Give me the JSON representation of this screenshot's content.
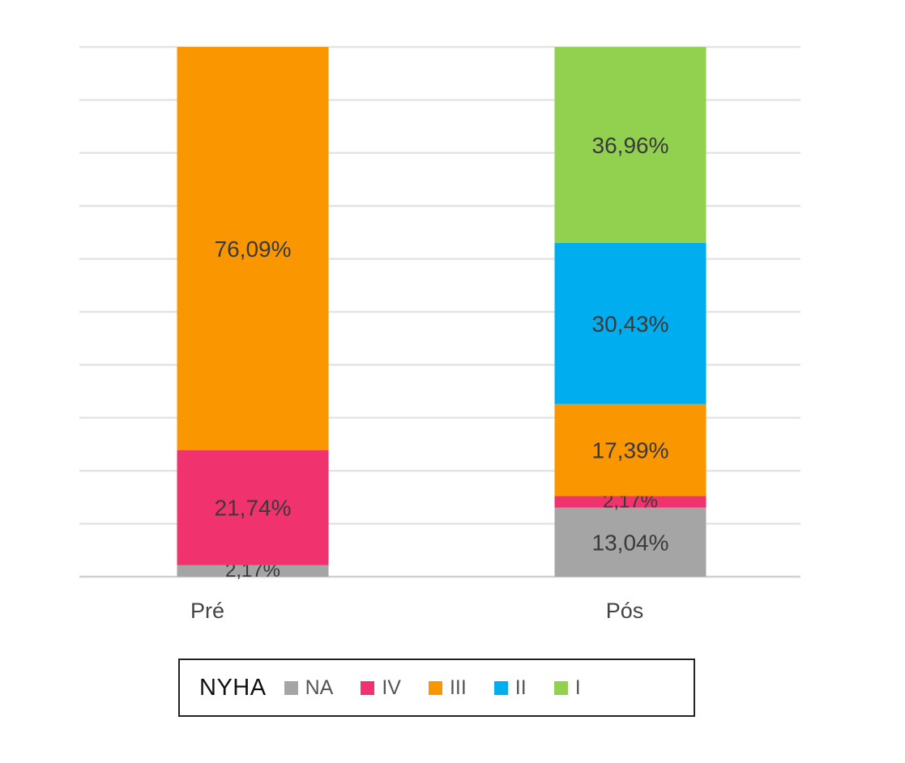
{
  "chart_data": {
    "type": "bar",
    "stacked": true,
    "categories": [
      "Pré",
      "Pós"
    ],
    "series": [
      {
        "name": "NA",
        "color": "#a5a5a5",
        "values": [
          2.17,
          13.04
        ],
        "labels": [
          "2,17%",
          "13,04%"
        ]
      },
      {
        "name": "IV",
        "color": "#f0336e",
        "values": [
          21.74,
          2.17
        ],
        "labels": [
          "21,74%",
          "2,17%"
        ]
      },
      {
        "name": "III",
        "color": "#f99600",
        "values": [
          76.09,
          17.39
        ],
        "labels": [
          "76,09%",
          "17,39%"
        ]
      },
      {
        "name": "II",
        "color": "#00aeef",
        "values": [
          0,
          30.43
        ],
        "labels": [
          "",
          "30,43%"
        ]
      },
      {
        "name": "I",
        "color": "#92d050",
        "values": [
          0,
          36.96
        ],
        "labels": [
          "",
          "36,96%"
        ]
      }
    ],
    "ylim": [
      0,
      100
    ],
    "grid": true,
    "legend": {
      "title": "NYHA",
      "position": "bottom"
    }
  }
}
